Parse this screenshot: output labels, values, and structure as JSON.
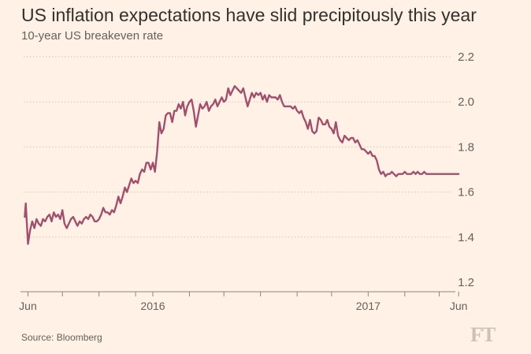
{
  "title": "US inflation expectations have slid precipitously this year",
  "subtitle": "10-year US breakeven rate",
  "source": "Source: Bloomberg",
  "logo": "FT",
  "colors": {
    "background": "#fff1e5",
    "line": "#a0506e",
    "grid": "#cfc4ba",
    "text": "#66605c"
  },
  "chart_data": {
    "type": "line",
    "title": "US inflation expectations have slid precipitously this year",
    "subtitle": "10-year US breakeven rate",
    "xlabel": "",
    "ylabel": "",
    "ylim": [
      1.2,
      2.2
    ],
    "xlim": [
      2015.4,
      2017.5
    ],
    "yticks": [
      "1.2",
      "1.4",
      "1.6",
      "1.8",
      "2.0",
      "2.2"
    ],
    "xticks": [
      {
        "x": 2015.42,
        "label": "Jun"
      },
      {
        "x": 2015.58,
        "label": ""
      },
      {
        "x": 2015.75,
        "label": ""
      },
      {
        "x": 2015.92,
        "label": ""
      },
      {
        "x": 2016.0,
        "label": "2016"
      },
      {
        "x": 2016.17,
        "label": ""
      },
      {
        "x": 2016.33,
        "label": ""
      },
      {
        "x": 2016.5,
        "label": ""
      },
      {
        "x": 2016.67,
        "label": ""
      },
      {
        "x": 2016.83,
        "label": ""
      },
      {
        "x": 2017.0,
        "label": "2017"
      },
      {
        "x": 2017.17,
        "label": ""
      },
      {
        "x": 2017.33,
        "label": ""
      },
      {
        "x": 2017.42,
        "label": "Jun"
      }
    ],
    "grid": true,
    "series": [
      {
        "name": "10-year US breakeven rate",
        "x": [
          2015.405,
          2015.41,
          2015.415,
          2015.42,
          2015.425,
          2015.43,
          2015.44,
          2015.45,
          2015.46,
          2015.47,
          2015.48,
          2015.49,
          2015.5,
          2015.51,
          2015.52,
          2015.53,
          2015.54,
          2015.55,
          2015.56,
          2015.57,
          2015.58,
          2015.59,
          2015.6,
          2015.61,
          2015.62,
          2015.63,
          2015.64,
          2015.65,
          2015.66,
          2015.67,
          2015.68,
          2015.69,
          2015.7,
          2015.71,
          2015.72,
          2015.73,
          2015.74,
          2015.75,
          2015.76,
          2015.77,
          2015.78,
          2015.79,
          2015.8,
          2015.81,
          2015.82,
          2015.83,
          2015.84,
          2015.85,
          2015.86,
          2015.87,
          2015.88,
          2015.89,
          2015.9,
          2015.91,
          2015.92,
          2015.93,
          2015.94,
          2015.95,
          2015.96,
          2015.97,
          2015.98,
          2015.99,
          2016.0,
          2016.01,
          2016.02,
          2016.03,
          2016.04,
          2016.05,
          2016.06,
          2016.07,
          2016.08,
          2016.09,
          2016.1,
          2016.11,
          2016.12,
          2016.13,
          2016.14,
          2016.15,
          2016.16,
          2016.17,
          2016.18,
          2016.19,
          2016.2,
          2016.21,
          2016.22,
          2016.23,
          2016.24,
          2016.25,
          2016.26,
          2016.27,
          2016.28,
          2016.29,
          2016.3,
          2016.31,
          2016.32,
          2016.33,
          2016.34,
          2016.35,
          2016.36,
          2016.37,
          2016.38,
          2016.39,
          2016.4,
          2016.41,
          2016.42,
          2016.43,
          2016.44,
          2016.45,
          2016.46,
          2016.47,
          2016.48,
          2016.49,
          2016.5,
          2016.51,
          2016.52,
          2016.53,
          2016.54,
          2016.55,
          2016.56,
          2016.57,
          2016.58,
          2016.59,
          2016.6,
          2016.61,
          2016.62,
          2016.63,
          2016.64,
          2016.65,
          2016.66,
          2016.67,
          2016.68,
          2016.69,
          2016.7,
          2016.71,
          2016.72,
          2016.73,
          2016.74,
          2016.75,
          2016.76,
          2016.77,
          2016.78,
          2016.79,
          2016.8,
          2016.81,
          2016.82,
          2016.83,
          2016.84,
          2016.85,
          2016.86,
          2016.87,
          2016.88,
          2016.89,
          2016.9,
          2016.91,
          2016.92,
          2016.93,
          2016.94,
          2016.95,
          2016.96,
          2016.97,
          2016.98,
          2016.99,
          2017.0,
          2017.01,
          2017.02,
          2017.03,
          2017.04,
          2017.05,
          2017.06,
          2017.07,
          2017.08,
          2017.09,
          2017.1,
          2017.11,
          2017.12,
          2017.13,
          2017.14,
          2017.15,
          2017.16,
          2017.17,
          2017.18,
          2017.19,
          2017.2,
          2017.21,
          2017.22,
          2017.23,
          2017.24,
          2017.25,
          2017.26,
          2017.27,
          2017.28,
          2017.29,
          2017.3,
          2017.31,
          2017.32,
          2017.33,
          2017.34,
          2017.35,
          2017.36,
          2017.37,
          2017.38,
          2017.39,
          2017.4,
          2017.41,
          2017.42
        ],
        "values": [
          1.49,
          1.55,
          1.46,
          1.37,
          1.4,
          1.43,
          1.47,
          1.44,
          1.48,
          1.46,
          1.45,
          1.48,
          1.47,
          1.49,
          1.5,
          1.47,
          1.51,
          1.49,
          1.5,
          1.48,
          1.52,
          1.46,
          1.44,
          1.46,
          1.48,
          1.49,
          1.47,
          1.45,
          1.47,
          1.46,
          1.48,
          1.49,
          1.48,
          1.5,
          1.49,
          1.47,
          1.47,
          1.48,
          1.5,
          1.53,
          1.51,
          1.51,
          1.5,
          1.52,
          1.51,
          1.54,
          1.58,
          1.55,
          1.58,
          1.62,
          1.6,
          1.63,
          1.66,
          1.64,
          1.65,
          1.64,
          1.68,
          1.7,
          1.69,
          1.73,
          1.73,
          1.7,
          1.73,
          1.69,
          1.78,
          1.91,
          1.86,
          1.88,
          1.94,
          1.95,
          1.95,
          1.91,
          1.96,
          1.96,
          1.99,
          1.97,
          2.0,
          1.94,
          1.98,
          2.0,
          2.01,
          1.96,
          1.89,
          1.94,
          1.99,
          1.97,
          1.98,
          2.0,
          1.96,
          1.98,
          1.99,
          2.01,
          1.98,
          2.0,
          2.02,
          2.0,
          2.01,
          2.06,
          2.03,
          2.05,
          2.07,
          2.06,
          2.05,
          2.04,
          2.06,
          2.02,
          1.98,
          2.01,
          2.04,
          2.02,
          2.04,
          2.03,
          2.04,
          2.01,
          2.03,
          2.0,
          2.03,
          2.02,
          2.02,
          2.02,
          2.01,
          2.03,
          2.0,
          1.98,
          1.98,
          1.98,
          1.98,
          1.97,
          1.98,
          1.96,
          1.95,
          1.96,
          1.93,
          1.91,
          1.88,
          1.92,
          1.87,
          1.86,
          1.87,
          1.93,
          1.92,
          1.9,
          1.9,
          1.92,
          1.89,
          1.88,
          1.86,
          1.91,
          1.85,
          1.83,
          1.82,
          1.85,
          1.84,
          1.83,
          1.84,
          1.84,
          1.82,
          1.83,
          1.81,
          1.79,
          1.79,
          1.78,
          1.77,
          1.78,
          1.76,
          1.76,
          1.74,
          1.7,
          1.68,
          1.69,
          1.67,
          1.68,
          1.68,
          1.69,
          1.68,
          1.67,
          1.68,
          1.68,
          1.68,
          1.69,
          1.68,
          1.68,
          1.68,
          1.69,
          1.68,
          1.69,
          1.68,
          1.68,
          1.69,
          1.68,
          1.68,
          1.68,
          1.68,
          1.68,
          1.68,
          1.68,
          1.68,
          1.68,
          1.68,
          1.68,
          1.68,
          1.68,
          1.68,
          1.68,
          1.68
        ]
      }
    ]
  }
}
